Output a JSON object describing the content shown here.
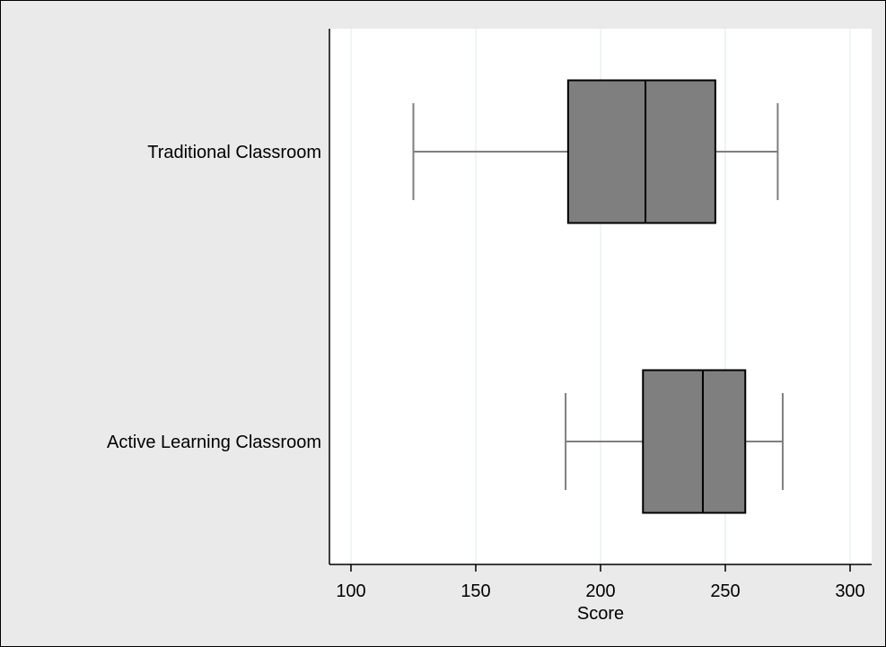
{
  "chart_data": {
    "type": "boxplot",
    "orientation": "horizontal",
    "xlabel": "Score",
    "xlim": [
      92,
      309
    ],
    "xticks": [
      100,
      150,
      200,
      250,
      300
    ],
    "grid": true,
    "categories": [
      "Traditional Classroom",
      "Active Learning Classroom"
    ],
    "boxes": [
      {
        "label": "Traditional Classroom",
        "min": 125,
        "q1": 187,
        "median": 218,
        "q3": 246,
        "max": 271
      },
      {
        "label": "Active Learning Classroom",
        "min": 186,
        "q1": 217,
        "median": 241,
        "q3": 258,
        "max": 273
      }
    ]
  },
  "colors": {
    "background": "#eaeaea",
    "plot_area": "#ffffff",
    "box_fill": "#7f7f7f",
    "whisker": "#7f7f7f",
    "grid": "#dfe9e9",
    "outline": "#000000"
  }
}
